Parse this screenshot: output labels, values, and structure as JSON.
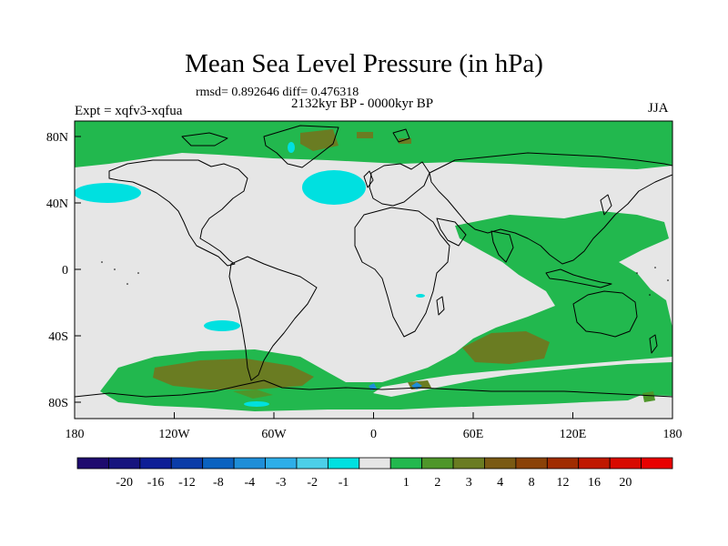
{
  "title": "Mean Sea Level Pressure (in hPa)",
  "stats": "rmsd= 0.892646 diff= 0.476318",
  "period": "2132kyr BP - 0000kyr BP",
  "experiment": "Expt = xqfv3-xqfua",
  "season": "JJA",
  "map": {
    "lon_ticks": [
      "180",
      "120W",
      "60W",
      "0",
      "60E",
      "120E",
      "180"
    ],
    "lat_ticks": [
      "80N",
      "40N",
      "0",
      "40S",
      "80S"
    ]
  },
  "colorbar": {
    "colors": [
      "#1e0a6e",
      "#16147e",
      "#0e1e96",
      "#0a3ca8",
      "#0a62c0",
      "#1e8ed8",
      "#2eaee8",
      "#4ccfe8",
      "#00e0e0",
      "#e6e6e6",
      "#22b84e",
      "#4e962a",
      "#6a7c22",
      "#7a5a14",
      "#8a4208",
      "#a02c00",
      "#c01800",
      "#d80a00",
      "#e80000"
    ],
    "labels": [
      "-20",
      "-16",
      "-12",
      "-8",
      "-4",
      "-3",
      "-2",
      "-1",
      "1",
      "2",
      "3",
      "4",
      "8",
      "12",
      "16",
      "20"
    ]
  }
}
